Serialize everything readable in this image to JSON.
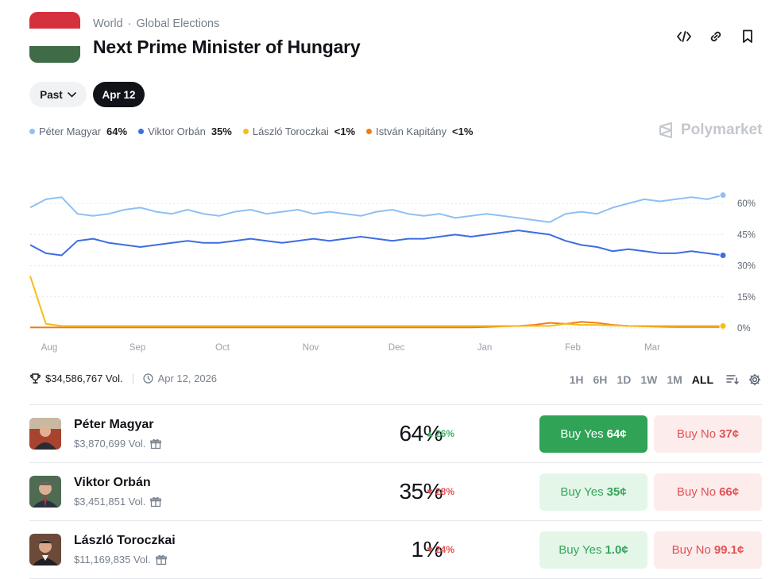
{
  "header": {
    "breadcrumb": [
      "World",
      "Global Elections"
    ],
    "title": "Next Prime Minister of Hungary",
    "flag_colors": [
      "#d5303d",
      "#ffffff",
      "#3f6c47"
    ]
  },
  "filters": {
    "past_label": "Past",
    "date_label": "Apr 12"
  },
  "legend": [
    {
      "name": "Péter Magyar",
      "value": "64%",
      "color": "#8fc0f3"
    },
    {
      "name": "Viktor Orbán",
      "value": "35%",
      "color": "#3d6de3"
    },
    {
      "name": "László Toroczkai",
      "value": "<1%",
      "color": "#f5bd18"
    },
    {
      "name": "István Kapitány",
      "value": "<1%",
      "color": "#f07d14"
    }
  ],
  "brand": "Polymarket",
  "chart_data": {
    "type": "line",
    "x_labels": [
      "Aug",
      "Sep",
      "Oct",
      "Nov",
      "Dec",
      "Jan",
      "Feb",
      "Mar"
    ],
    "y_ticks": [
      "60%",
      "45%",
      "30%",
      "15%",
      "0%"
    ],
    "ylim": [
      0,
      70
    ],
    "grid": "horizontal-dotted",
    "series": [
      {
        "name": "Péter Magyar",
        "color": "#8fc0f3",
        "values": [
          58,
          62,
          63,
          55,
          54,
          55,
          57,
          58,
          56,
          55,
          57,
          55,
          54,
          56,
          57,
          55,
          56,
          57,
          55,
          56,
          55,
          54,
          56,
          57,
          55,
          54,
          55,
          53,
          54,
          55,
          54,
          53,
          52,
          51,
          55,
          56,
          55,
          58,
          60,
          62,
          61,
          62,
          63,
          62,
          64
        ]
      },
      {
        "name": "Viktor Orbán",
        "color": "#3d6de3",
        "values": [
          40,
          36,
          35,
          42,
          43,
          41,
          40,
          39,
          40,
          41,
          42,
          41,
          41,
          42,
          43,
          42,
          41,
          42,
          43,
          42,
          43,
          44,
          43,
          42,
          43,
          43,
          44,
          45,
          44,
          45,
          46,
          47,
          46,
          45,
          42,
          40,
          39,
          37,
          38,
          37,
          36,
          36,
          37,
          36,
          35
        ]
      },
      {
        "name": "László Toroczkai",
        "color": "#f5bd18",
        "values": [
          25,
          2,
          1,
          1,
          1,
          1,
          1,
          1,
          1,
          1,
          1,
          1,
          1,
          1,
          1,
          1,
          1,
          1,
          1,
          1,
          1,
          1,
          1,
          1,
          1,
          1,
          1,
          1,
          1,
          1,
          1,
          1,
          1,
          1,
          2,
          1.5,
          1.5,
          1.2,
          1,
          1,
          1,
          1,
          1,
          1,
          1
        ]
      },
      {
        "name": "István Kapitány",
        "color": "#f07d14",
        "values": [
          0.3,
          0.3,
          0.3,
          0.3,
          0.3,
          0.3,
          0.3,
          0.3,
          0.3,
          0.3,
          0.3,
          0.3,
          0.3,
          0.3,
          0.3,
          0.3,
          0.3,
          0.3,
          0.3,
          0.3,
          0.3,
          0.3,
          0.3,
          0.3,
          0.3,
          0.3,
          0.3,
          0.3,
          0.3,
          0.5,
          0.8,
          1,
          1.5,
          2.5,
          2,
          3,
          2.5,
          1.5,
          1,
          0.8,
          0.6,
          0.5,
          0.5,
          0.5,
          0.5
        ]
      }
    ]
  },
  "stats": {
    "volume": "$34,586,767 Vol.",
    "date": "Apr 12, 2026"
  },
  "ranges": [
    "1H",
    "6H",
    "1D",
    "1W",
    "1M",
    "ALL"
  ],
  "active_range": "ALL",
  "outcomes": [
    {
      "name": "Péter Magyar",
      "volume": "$3,870,699 Vol.",
      "pct": "64%",
      "change": "26%",
      "direction": "up",
      "yes_label": "Buy Yes",
      "yes_price": "64¢",
      "no_label": "Buy No",
      "no_price": "37¢",
      "avatar_bg": "#a8432f"
    },
    {
      "name": "Viktor Orbán",
      "volume": "$3,451,851 Vol.",
      "pct": "35%",
      "change": "28%",
      "direction": "down",
      "yes_label": "Buy Yes",
      "yes_price": "35¢",
      "no_label": "Buy No",
      "no_price": "66¢",
      "avatar_bg": "#4f6b52"
    },
    {
      "name": "László Toroczkai",
      "volume": "$11,169,835 Vol.",
      "pct": "1%",
      "change": "24%",
      "direction": "down",
      "yes_label": "Buy Yes",
      "yes_price": "1.0¢",
      "no_label": "Buy No",
      "no_price": "99.1¢",
      "avatar_bg": "#6b4a3a"
    }
  ]
}
